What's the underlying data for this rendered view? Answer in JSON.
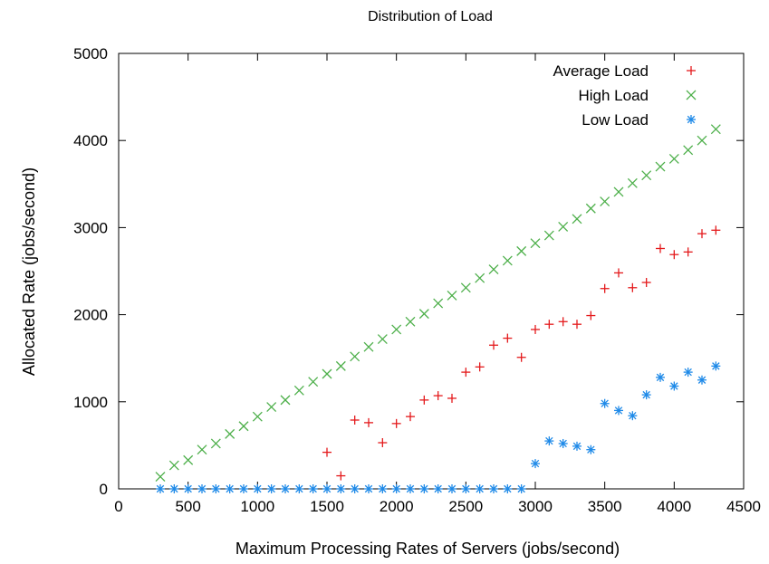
{
  "chart_data": {
    "type": "scatter",
    "title": "Distribution of Load",
    "xlabel": "Maximum Processing Rates of Servers (jobs/second)",
    "ylabel": "Allocated Rate (jobs/second)",
    "xlim": [
      0,
      4500
    ],
    "ylim": [
      0,
      5000
    ],
    "x_ticks": [
      0,
      500,
      1000,
      1500,
      2000,
      2500,
      3000,
      3500,
      4000,
      4500
    ],
    "y_ticks": [
      0,
      1000,
      2000,
      3000,
      4000,
      5000
    ],
    "grid": false,
    "legend_position": "top-right",
    "series": [
      {
        "name": "Average Load",
        "color": "#e41a1c",
        "marker": "plus",
        "x": [
          1500,
          1600,
          1700,
          1800,
          1900,
          2000,
          2100,
          2200,
          2300,
          2400,
          2500,
          2600,
          2700,
          2800,
          2900,
          3000,
          3100,
          3200,
          3300,
          3400,
          3500,
          3600,
          3700,
          3800,
          3900,
          4000,
          4100,
          4200,
          4300
        ],
        "y": [
          420,
          150,
          790,
          760,
          530,
          750,
          830,
          1020,
          1070,
          1040,
          1340,
          1400,
          1650,
          1730,
          1510,
          1830,
          1890,
          1920,
          1890,
          1990,
          2300,
          2480,
          2310,
          2370,
          2760,
          2690,
          2720,
          2930,
          2970
        ]
      },
      {
        "name": "High Load",
        "color": "#4daf4a",
        "marker": "x",
        "x": [
          300,
          400,
          500,
          600,
          700,
          800,
          900,
          1000,
          1100,
          1200,
          1300,
          1400,
          1500,
          1600,
          1700,
          1800,
          1900,
          2000,
          2100,
          2200,
          2300,
          2400,
          2500,
          2600,
          2700,
          2800,
          2900,
          3000,
          3100,
          3200,
          3300,
          3400,
          3500,
          3600,
          3700,
          3800,
          3900,
          4000,
          4100,
          4200,
          4300
        ],
        "y": [
          140,
          270,
          330,
          450,
          520,
          630,
          720,
          830,
          940,
          1020,
          1130,
          1230,
          1320,
          1410,
          1520,
          1630,
          1720,
          1830,
          1920,
          2010,
          2130,
          2220,
          2310,
          2420,
          2520,
          2620,
          2730,
          2820,
          2910,
          3010,
          3100,
          3220,
          3300,
          3410,
          3510,
          3600,
          3700,
          3790,
          3890,
          4000,
          4130
        ]
      },
      {
        "name": "Low Load",
        "color": "#1f8ae8",
        "marker": "star",
        "x": [
          300,
          400,
          500,
          600,
          700,
          800,
          900,
          1000,
          1100,
          1200,
          1300,
          1400,
          1500,
          1600,
          1700,
          1800,
          1900,
          2000,
          2100,
          2200,
          2300,
          2400,
          2500,
          2600,
          2700,
          2800,
          2900,
          3000,
          3100,
          3200,
          3300,
          3400,
          3500,
          3600,
          3700,
          3800,
          3900,
          4000,
          4100,
          4200,
          4300
        ],
        "y": [
          0,
          0,
          0,
          0,
          0,
          0,
          0,
          0,
          0,
          0,
          0,
          0,
          0,
          0,
          0,
          0,
          0,
          0,
          0,
          0,
          0,
          0,
          0,
          0,
          0,
          0,
          0,
          290,
          550,
          520,
          490,
          450,
          980,
          900,
          840,
          1080,
          1280,
          1180,
          1340,
          1250,
          1410
        ]
      }
    ]
  }
}
